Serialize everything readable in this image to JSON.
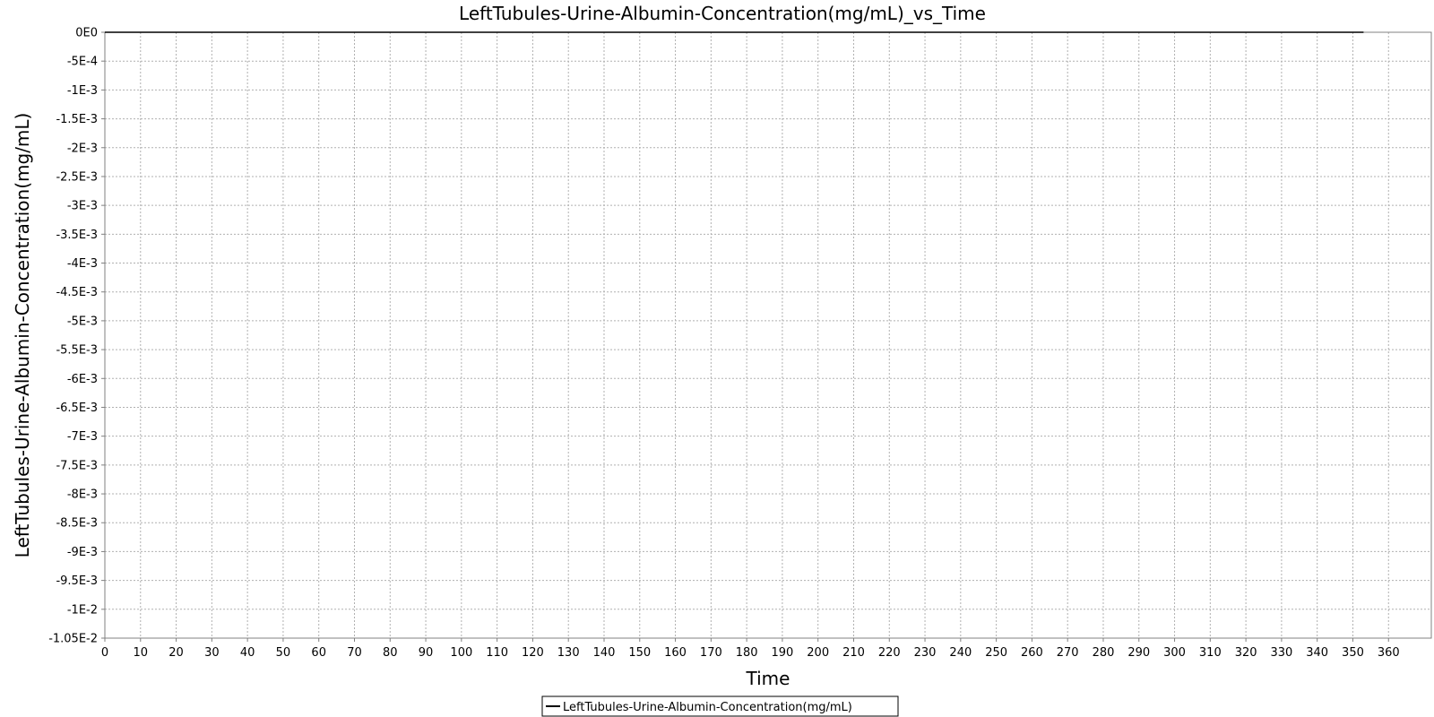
{
  "chart_data": {
    "type": "line",
    "title": "LeftTubules-Urine-Albumin-Concentration(mg/mL)_vs_Time",
    "xlabel": "Time",
    "ylabel": "LeftTubules-Urine-Albumin-Concentration(mg/mL)",
    "xlim": [
      0,
      372
    ],
    "ylim": [
      -0.0105,
      0
    ],
    "x_ticks": [
      0,
      10,
      20,
      30,
      40,
      50,
      60,
      70,
      80,
      90,
      100,
      110,
      120,
      130,
      140,
      150,
      160,
      170,
      180,
      190,
      200,
      210,
      220,
      230,
      240,
      250,
      260,
      270,
      280,
      290,
      300,
      310,
      320,
      330,
      340,
      350,
      360
    ],
    "x_tick_labels": [
      "0",
      "10",
      "20",
      "30",
      "40",
      "50",
      "60",
      "70",
      "80",
      "90",
      "100",
      "110",
      "120",
      "130",
      "140",
      "150",
      "160",
      "170",
      "180",
      "190",
      "200",
      "210",
      "220",
      "230",
      "240",
      "250",
      "260",
      "270",
      "280",
      "290",
      "300",
      "310",
      "320",
      "330",
      "340",
      "350",
      "360"
    ],
    "y_ticks": [
      0,
      -0.0005,
      -0.001,
      -0.0015,
      -0.002,
      -0.0025,
      -0.003,
      -0.0035,
      -0.004,
      -0.0045,
      -0.005,
      -0.0055,
      -0.006,
      -0.0065,
      -0.007,
      -0.0075,
      -0.008,
      -0.0085,
      -0.009,
      -0.0095,
      -0.01,
      -0.0105
    ],
    "y_tick_labels": [
      "0E0",
      "-5E-4",
      "-1E-3",
      "-1.5E-3",
      "-2E-3",
      "-2.5E-3",
      "-3E-3",
      "-3.5E-3",
      "-4E-3",
      "-4.5E-3",
      "-5E-3",
      "-5.5E-3",
      "-6E-3",
      "-6.5E-3",
      "-7E-3",
      "-7.5E-3",
      "-8E-3",
      "-8.5E-3",
      "-9E-3",
      "-9.5E-3",
      "-1E-2",
      "-1.05E-2"
    ],
    "grid": true,
    "legend_position": "bottom-center",
    "series": [
      {
        "name": "LeftTubules-Urine-Albumin-Concentration(mg/mL)",
        "color": "#000000",
        "x": [
          0,
          353
        ],
        "y": [
          0,
          0
        ]
      }
    ]
  }
}
